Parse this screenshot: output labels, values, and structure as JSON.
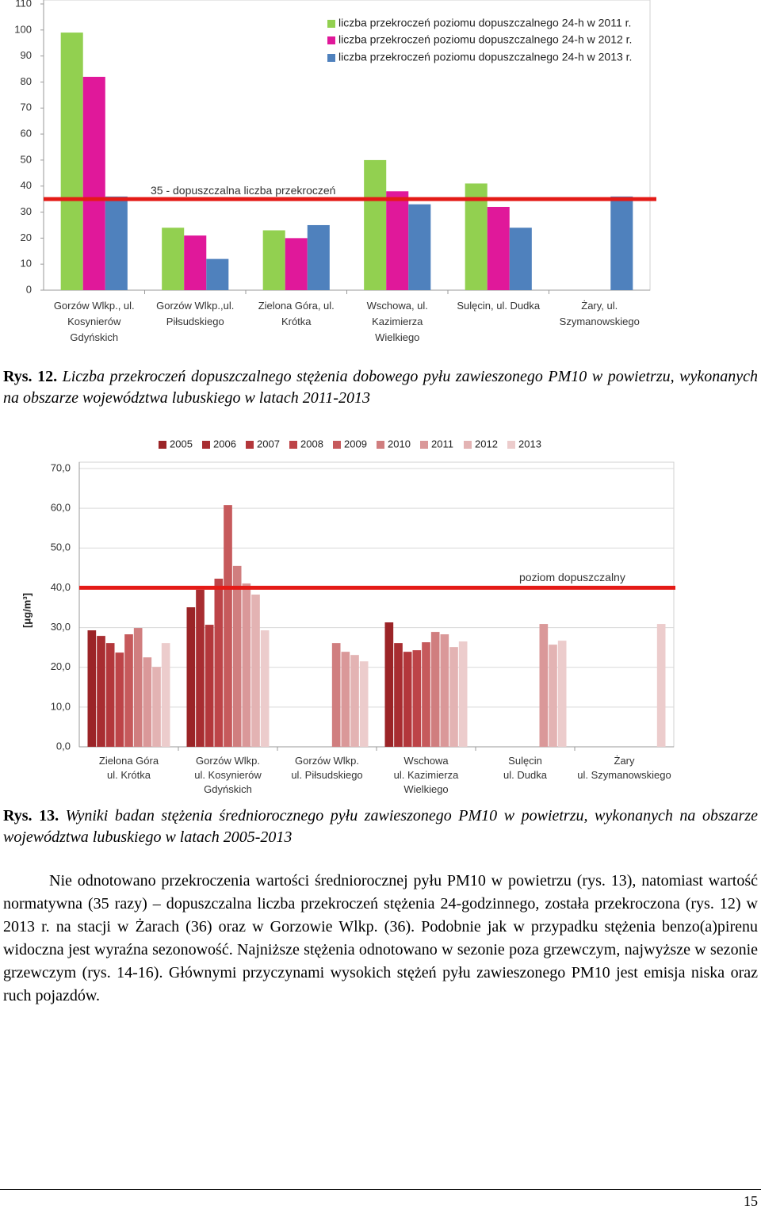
{
  "chart_data": [
    {
      "type": "bar",
      "categories": [
        "Gorzów Wlkp., ul.\nKosynierów\nGdyńskich",
        "Gorzów Wlkp.,ul.\nPiłsudskiego",
        "Zielona Góra, ul.\nKrótka",
        "Wschowa, ul.\nKazimierza\nWielkiego",
        "Sulęcin, ul. Dudka",
        "Żary, ul.\nSzymanowskiego"
      ],
      "series": [
        {
          "name": "liczba przekroczeń poziomu dopuszczalnego 24-h w 2011 r.",
          "color": "#92d050",
          "values": [
            99,
            24,
            23,
            50,
            41,
            null
          ]
        },
        {
          "name": "liczba przekroczeń poziomu dopuszczalnego 24-h w 2012 r.",
          "color": "#e0189a",
          "values": [
            82,
            21,
            20,
            38,
            32,
            null
          ]
        },
        {
          "name": "liczba przekroczeń poziomu dopuszczalnego 24-h w 2013 r.",
          "color": "#4f81bd",
          "values": [
            36,
            12,
            25,
            33,
            24,
            36
          ]
        }
      ],
      "ylim": [
        0,
        110
      ],
      "yticks": [
        0,
        10,
        20,
        30,
        40,
        50,
        60,
        70,
        80,
        90,
        100,
        110
      ],
      "grid": false,
      "threshold": {
        "value": 35,
        "label": "35 - dopuszczalna liczba przekroczeń",
        "color": "#e41b17"
      },
      "legend": "top-right"
    },
    {
      "type": "bar",
      "y_label": "[μg/m³]",
      "categories": [
        "Zielona Góra\nul. Krótka",
        "Gorzów Wlkp.\nul. Kosynierów\nGdyńskich",
        "Gorzów Wlkp.\nul. Piłsudskiego",
        "Wschowa\nul. Kazimierza\nWielkiego",
        "Sulęcin\nul. Dudka",
        "Żary\nul. Szymanowskiego"
      ],
      "series": [
        {
          "name": "2005",
          "color": "#9b2427",
          "values": [
            29.3,
            35.1,
            null,
            31.3,
            null,
            null
          ]
        },
        {
          "name": "2006",
          "color": "#a82d31",
          "values": [
            27.9,
            39.5,
            null,
            26.1,
            null,
            null
          ]
        },
        {
          "name": "2007",
          "color": "#b3373b",
          "values": [
            26.1,
            30.7,
            null,
            23.9,
            null,
            null
          ]
        },
        {
          "name": "2008",
          "color": "#bd4448",
          "values": [
            23.7,
            42.3,
            null,
            24.3,
            null,
            null
          ]
        },
        {
          "name": "2009",
          "color": "#c65a5c",
          "values": [
            28.3,
            60.8,
            null,
            26.3,
            null,
            null
          ]
        },
        {
          "name": "2010",
          "color": "#d07e7f",
          "values": [
            29.9,
            45.5,
            26.1,
            28.9,
            null,
            null
          ]
        },
        {
          "name": "2011",
          "color": "#da9899",
          "values": [
            22.5,
            41.1,
            23.9,
            28.3,
            30.9,
            null
          ]
        },
        {
          "name": "2012",
          "color": "#e3b3b3",
          "values": [
            20.1,
            38.3,
            23.1,
            25.1,
            25.7,
            null
          ]
        },
        {
          "name": "2013",
          "color": "#eccccc",
          "values": [
            26.1,
            29.3,
            21.5,
            26.5,
            26.7,
            30.9
          ]
        }
      ],
      "ylim": [
        0,
        70
      ],
      "yticks": [
        {
          "value": 0,
          "label": "0,0"
        },
        {
          "value": 10,
          "label": "10,0"
        },
        {
          "value": 20,
          "label": "20,0"
        },
        {
          "value": 30,
          "label": "30,0"
        },
        {
          "value": 40,
          "label": "40,0"
        },
        {
          "value": 50,
          "label": "50,0"
        },
        {
          "value": 60,
          "label": "60,0"
        },
        {
          "value": 70,
          "label": "70,0"
        }
      ],
      "grid": true,
      "threshold": {
        "value": 40,
        "label": "poziom dopuszczalny",
        "color": "#e41b17"
      },
      "legend": "top"
    }
  ],
  "captions": [
    {
      "label": "Rys.  12.",
      "text": "Liczba przekroczeń dopuszczalnego stężenia dobowego pyłu zawieszonego PM10 w powietrzu, wykonanych na obszarze województwa lubuskiego w latach 2011-2013"
    },
    {
      "label": "Rys. 13.",
      "text": "Wyniki badan stężenia średniorocznego pyłu zawieszonego PM10 w powietrzu, wykonanych na obszarze województwa lubuskiego w latach 2005-2013"
    }
  ],
  "paragraph": "Nie odnotowano przekroczenia wartości średniorocznej pyłu PM10 w powietrzu (rys. 13), natomiast wartość normatywna (35 razy) – dopuszczalna liczba przekroczeń stężenia 24-godzinnego, została przekroczona (rys. 12) w 2013 r. na stacji w Żarach (36) oraz w Gorzowie Wlkp. (36). Podobnie jak w przypadku stężenia benzo(a)pirenu widoczna jest wyraźna sezonowość. Najniższe stężenia odnotowano w sezonie poza grzewczym, najwyższe w sezonie grzewczym (rys. 14-16). Głównymi przyczynami wysokich stężeń pyłu zawieszonego PM10 jest emisja niska oraz ruch pojazdów.",
  "page_number": "15"
}
